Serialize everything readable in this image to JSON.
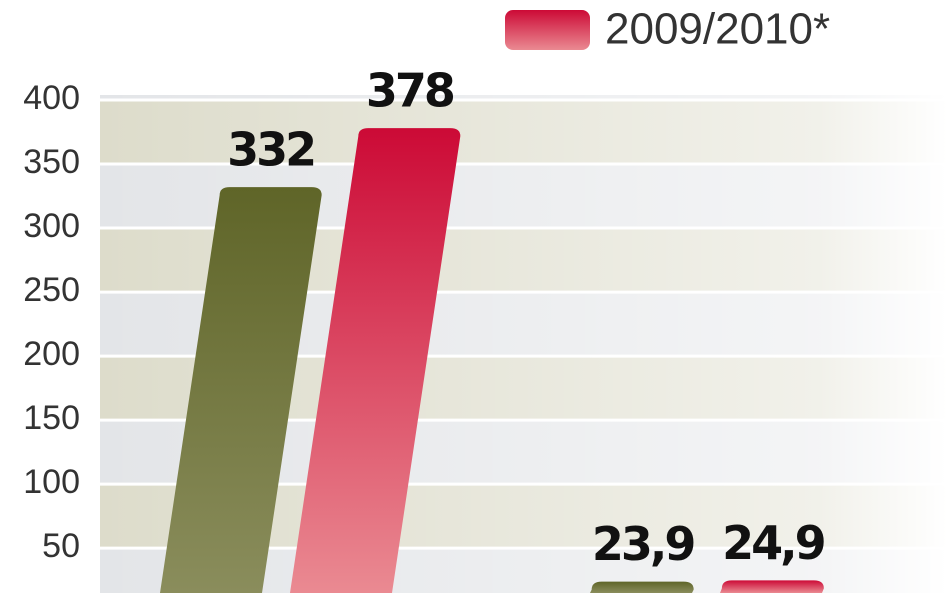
{
  "chart_data": {
    "type": "bar",
    "categories": [
      null,
      null
    ],
    "series": [
      {
        "color": "#6b7034",
        "values": [
          332,
          23.9
        ],
        "value_labels": [
          "332",
          "23,9"
        ]
      },
      {
        "name": "2009/2010*",
        "color": "#d0103a",
        "values": [
          378,
          24.9
        ],
        "value_labels": [
          "378",
          "24,9"
        ]
      }
    ],
    "ylim": [
      15,
      400
    ],
    "yticks": [
      50,
      100,
      150,
      200,
      250,
      300,
      350,
      400
    ],
    "grid": true,
    "legend": "top-right"
  }
}
